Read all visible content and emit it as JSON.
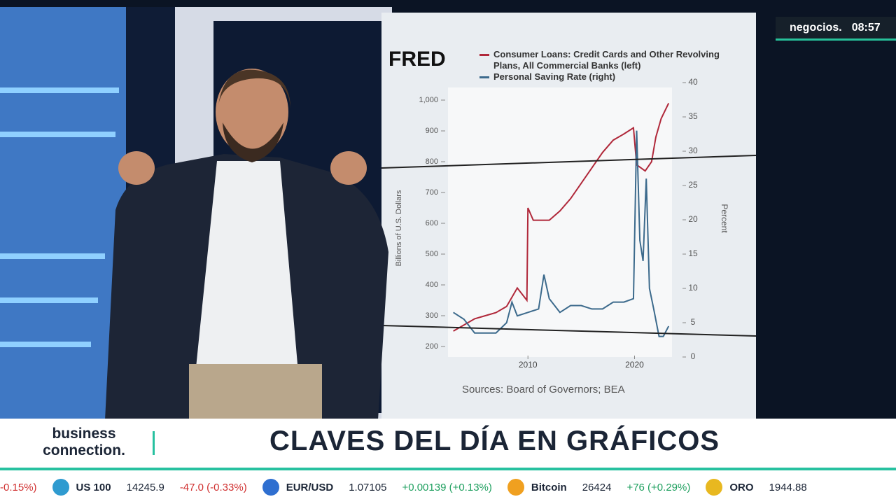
{
  "broadcast": {
    "channel": "negocios.",
    "time": "08:57",
    "show": "business connection.",
    "headline": "CLAVES DEL DÍA EN GRÁFICOS",
    "ticker": [
      {
        "value": "-0.15%)"
      },
      {
        "name": "US 100",
        "value": "14245.9",
        "change": "-47.0 (-0.33%)"
      },
      {
        "name": "EUR/USD",
        "value": "1.07105",
        "change": "+0.00139 (+0.13%)"
      },
      {
        "name": "Bitcoin",
        "value": "26424",
        "change": "+76 (+0.29%)"
      },
      {
        "name": "ORO",
        "value": "1944.88"
      }
    ]
  },
  "screen_chart": {
    "type": "line",
    "brand": "FRED",
    "source": "Sources: Board of Governors; BEA",
    "ylabel": "Billions of U.S. Dollars",
    "y2label": "Percent",
    "xlim": [
      2002.5,
      2024.5
    ],
    "xticks": [
      2010,
      2020
    ],
    "ylim": [
      200,
      1000
    ],
    "yticks": [
      200,
      300,
      400,
      500,
      600,
      700,
      800,
      900,
      {
        "value": 1000,
        "label": "1,000"
      }
    ],
    "y2lim": [
      0,
      40
    ],
    "y2ticks": [
      0,
      5,
      10,
      15,
      20,
      25,
      30,
      35,
      40
    ],
    "series": [
      {
        "name": "Consumer Loans: Credit Cards and Other Revolving Plans, All Commercial Banks (left)",
        "color": "#b0283a",
        "x": [
          2003,
          2004,
          2005,
          2006,
          2007,
          2008,
          2009,
          2009.9,
          2010,
          2010.5,
          2011,
          2012,
          2013,
          2014,
          2015,
          2016,
          2017,
          2018,
          2019,
          2019.9,
          2020.2,
          2021,
          2021.6,
          2022,
          2022.5,
          2023.2
        ],
        "values": [
          250,
          270,
          290,
          300,
          310,
          330,
          390,
          350,
          650,
          610,
          610,
          610,
          640,
          680,
          730,
          780,
          830,
          870,
          890,
          910,
          790,
          770,
          800,
          880,
          940,
          990
        ]
      },
      {
        "name": "Personal Saving Rate (right)",
        "color": "#3c6a8c",
        "axis": "y2",
        "x": [
          2003,
          2004,
          2005,
          2006,
          2007,
          2008,
          2008.5,
          2009,
          2010,
          2011,
          2011.5,
          2012,
          2013,
          2014,
          2015,
          2016,
          2017,
          2018,
          2019,
          2019.9,
          2020.2,
          2020.5,
          2020.8,
          2021.1,
          2021.4,
          2021.8,
          2022.3,
          2022.7,
          2023.2
        ],
        "values": [
          6.5,
          5.5,
          3.5,
          3.5,
          3.5,
          5,
          8,
          6,
          6.5,
          7,
          12,
          8.5,
          6.5,
          7.5,
          7.5,
          7,
          7,
          8,
          8,
          8.5,
          33,
          17,
          14,
          26,
          10,
          7,
          3,
          3,
          4.5
        ]
      }
    ]
  }
}
